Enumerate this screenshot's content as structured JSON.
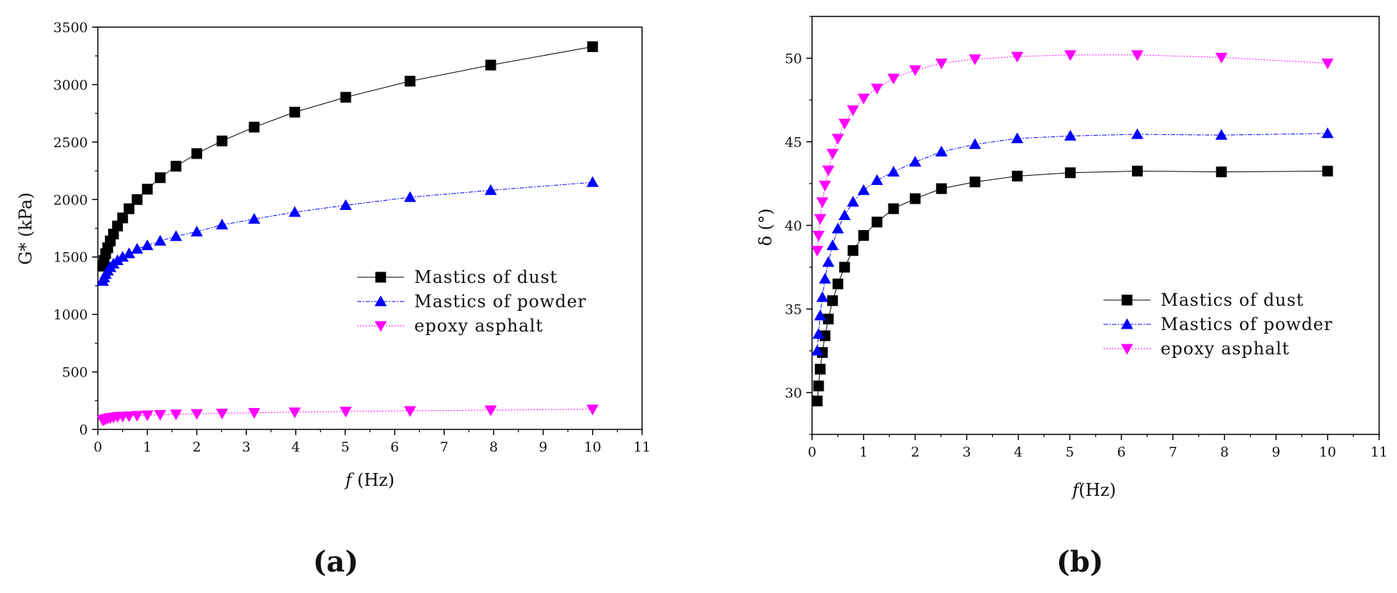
{
  "panels": [
    {
      "label": "(a)"
    },
    {
      "label": "(b)"
    }
  ],
  "chart_data": [
    {
      "type": "line",
      "xlabel_italic": "f",
      "xlabel_unit": " (Hz)",
      "ylabel": "G* (kPa)",
      "xlim": [
        0,
        11
      ],
      "ylim": [
        0,
        3500
      ],
      "xticks": [
        0,
        1,
        2,
        3,
        4,
        5,
        6,
        7,
        8,
        9,
        10,
        11
      ],
      "yticks": [
        0,
        500,
        1000,
        1500,
        2000,
        2500,
        3000,
        3500
      ],
      "grid": false,
      "legend_position": "center-right",
      "x": [
        0.1,
        0.126,
        0.158,
        0.2,
        0.251,
        0.316,
        0.398,
        0.501,
        0.631,
        0.794,
        1,
        1.26,
        1.58,
        2,
        2.51,
        3.16,
        3.98,
        5.01,
        6.31,
        7.94,
        10
      ],
      "series": [
        {
          "name": "Mastics of dust",
          "color": "#000000",
          "marker": "square",
          "values": [
            1420,
            1470,
            1530,
            1580,
            1640,
            1700,
            1770,
            1840,
            1920,
            2000,
            2090,
            2190,
            2290,
            2400,
            2510,
            2630,
            2760,
            2890,
            3030,
            3170,
            3330
          ]
        },
        {
          "name": "Mastics of powder",
          "color": "#0000ff",
          "marker": "triangle-up",
          "values": [
            1290,
            1320,
            1350,
            1380,
            1410,
            1440,
            1470,
            1500,
            1530,
            1570,
            1600,
            1640,
            1680,
            1720,
            1780,
            1830,
            1890,
            1950,
            2020,
            2080,
            2150
          ]
        },
        {
          "name": "epoxy asphalt",
          "color": "#ff00ff",
          "marker": "triangle-down",
          "values": [
            80,
            85,
            90,
            95,
            100,
            105,
            110,
            113,
            116,
            120,
            124,
            128,
            132,
            136,
            140,
            145,
            150,
            156,
            162,
            168,
            175
          ]
        }
      ]
    },
    {
      "type": "line",
      "xlabel_italic": "f",
      "xlabel_unit": "(Hz)",
      "ylabel": "δ (°)",
      "xlim": [
        0,
        11
      ],
      "ylim": [
        27.5,
        52.5
      ],
      "xticks": [
        0,
        1,
        2,
        3,
        4,
        5,
        6,
        7,
        8,
        9,
        10,
        11
      ],
      "yticks": [
        30,
        35,
        40,
        45,
        50
      ],
      "grid": false,
      "legend_position": "center-right",
      "x": [
        0.1,
        0.126,
        0.158,
        0.2,
        0.251,
        0.316,
        0.398,
        0.501,
        0.631,
        0.794,
        1,
        1.26,
        1.58,
        2,
        2.51,
        3.16,
        3.98,
        5.01,
        6.31,
        7.94,
        10
      ],
      "series": [
        {
          "name": "Mastics of dust",
          "color": "#000000",
          "marker": "square",
          "values": [
            29.5,
            30.4,
            31.4,
            32.4,
            33.4,
            34.4,
            35.5,
            36.5,
            37.5,
            38.5,
            39.4,
            40.2,
            41.0,
            41.6,
            42.2,
            42.6,
            42.95,
            43.15,
            43.25,
            43.2,
            43.25
          ]
        },
        {
          "name": "Mastics of powder",
          "color": "#0000ff",
          "marker": "triangle-up",
          "values": [
            32.5,
            33.5,
            34.6,
            35.7,
            36.8,
            37.8,
            38.8,
            39.8,
            40.6,
            41.4,
            42.1,
            42.7,
            43.2,
            43.8,
            44.4,
            44.85,
            45.2,
            45.35,
            45.45,
            45.4,
            45.5
          ]
        },
        {
          "name": "epoxy asphalt",
          "color": "#ff00ff",
          "marker": "triangle-down",
          "values": [
            38.5,
            39.4,
            40.4,
            41.4,
            42.4,
            43.3,
            44.3,
            45.2,
            46.1,
            46.9,
            47.6,
            48.2,
            48.8,
            49.3,
            49.7,
            49.95,
            50.1,
            50.2,
            50.2,
            50.05,
            49.7
          ]
        }
      ]
    }
  ]
}
